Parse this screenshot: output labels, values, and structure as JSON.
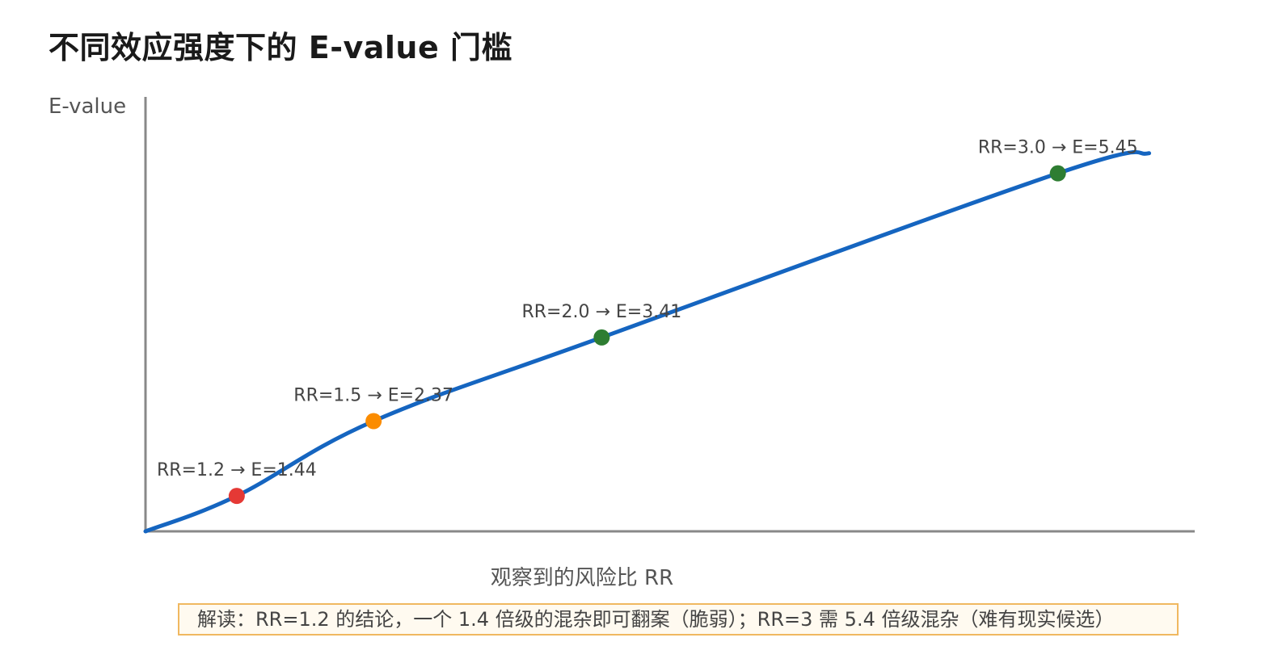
{
  "title": "不同效应强度下的 E-value 门槛",
  "note": "解读：RR=1.2 的结论，一个 1.4 倍级的混杂即可翻案（脆弱）；RR=3 需 5.4 倍级混杂（难有现实候选）",
  "chart_data": {
    "type": "line",
    "title": "不同效应强度下的 E-value 门槛",
    "xlabel": "观察到的风险比 RR",
    "ylabel": "E-value",
    "xlim": [
      1.0,
      3.3
    ],
    "ylim": [
      1.0,
      6.4
    ],
    "grid": false,
    "series": [
      {
        "values_x": [
          1.0,
          1.2,
          1.5,
          2.0,
          3.0,
          3.2
        ],
        "values_y": [
          1.0,
          1.44,
          2.37,
          3.41,
          5.45,
          5.7
        ]
      }
    ],
    "points": [
      {
        "label": "RR=1.2 → E=1.44",
        "rr": 1.2,
        "e": 1.44,
        "color": "#e53935"
      },
      {
        "label": "RR=1.5 → E=2.37",
        "rr": 1.5,
        "e": 2.37,
        "color": "#fb8c00"
      },
      {
        "label": "RR=2.0 → E=3.41",
        "rr": 2.0,
        "e": 3.41,
        "color": "#2e7d32"
      },
      {
        "label": "RR=3.0 → E=5.45",
        "rr": 3.0,
        "e": 5.45,
        "color": "#2e7d32"
      }
    ],
    "line_color": "#1565c0",
    "axis_color": "#888888"
  }
}
